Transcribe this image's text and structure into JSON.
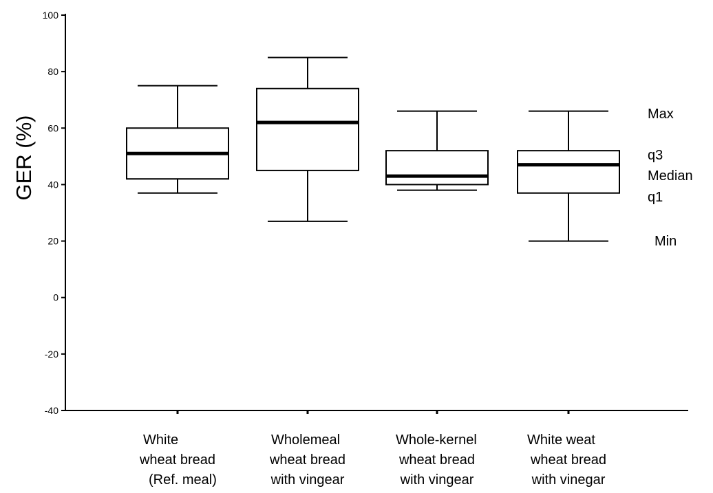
{
  "chart_data": {
    "type": "box",
    "ylabel": "GER (%)",
    "xlabel": "",
    "ylim": [
      -40,
      100
    ],
    "yticks": [
      100,
      80,
      60,
      40,
      20,
      0,
      -20,
      -40
    ],
    "categories": [
      {
        "lines": [
          "White",
          "wheat bread",
          "(Ref. meal)"
        ]
      },
      {
        "lines": [
          "Wholemeal",
          "wheat bread",
          "with vingear"
        ]
      },
      {
        "lines": [
          "Whole-kernel",
          "wheat bread",
          "with vingear"
        ]
      },
      {
        "lines": [
          "White weat",
          "wheat bread",
          "with vinegar"
        ]
      }
    ],
    "boxes": [
      {
        "min": 37,
        "q1": 42,
        "median": 51,
        "q3": 60,
        "max": 75
      },
      {
        "min": 27,
        "q1": 45,
        "median": 62,
        "q3": 74,
        "max": 85
      },
      {
        "min": 38,
        "q1": 40,
        "median": 43,
        "q3": 52,
        "max": 66
      },
      {
        "min": 20,
        "q1": 37,
        "median": 47,
        "q3": 52,
        "max": 66
      }
    ],
    "legend": [
      "Max",
      "q3",
      "Median",
      "q1",
      "Min"
    ],
    "legend_placement": "right",
    "grid": false,
    "colors": {
      "line": "#000000",
      "box_fill": "#ffffff"
    }
  }
}
